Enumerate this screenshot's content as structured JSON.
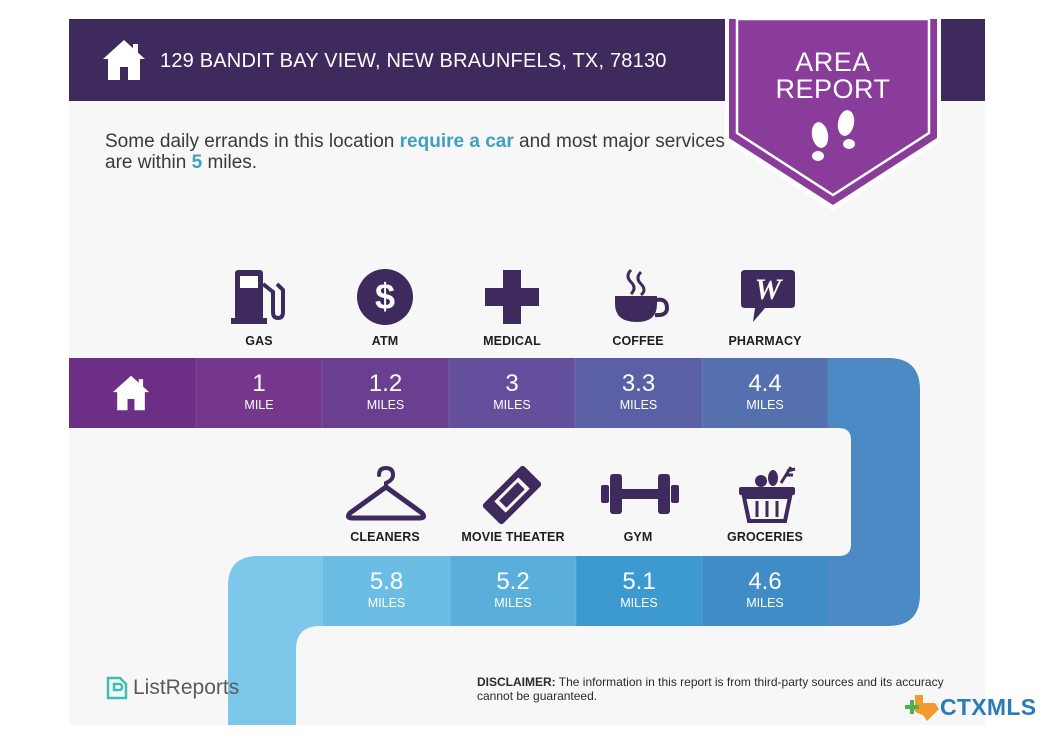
{
  "header": {
    "address": "129 BANDIT BAY VIEW, NEW BRAUNFELS, TX, 78130",
    "home_icon": "house-icon"
  },
  "badge": {
    "line1": "AREA",
    "line2": "REPORT",
    "icon": "footprints-icon",
    "color": "#8a3c9a"
  },
  "intro": {
    "part1": "Some daily errands in this location ",
    "highlight1": "require a car",
    "part2": " and most major services are within ",
    "highlight2": "5",
    "part3": " miles."
  },
  "route": {
    "row1": [
      {
        "label": "GAS",
        "value": "1",
        "unit": "MILE",
        "icon": "gas-pump-icon"
      },
      {
        "label": "ATM",
        "value": "1.2",
        "unit": "MILES",
        "icon": "dollar-icon"
      },
      {
        "label": "MEDICAL",
        "value": "3",
        "unit": "MILES",
        "icon": "medical-cross-icon"
      },
      {
        "label": "COFFEE",
        "value": "3.3",
        "unit": "MILES",
        "icon": "coffee-cup-icon"
      },
      {
        "label": "PHARMACY",
        "value": "4.4",
        "unit": "MILES",
        "icon": "walgreens-icon"
      }
    ],
    "row2": [
      {
        "label": "CLEANERS",
        "value": "5.8",
        "unit": "MILES",
        "icon": "hanger-icon"
      },
      {
        "label": "MOVIE THEATER",
        "value": "5.2",
        "unit": "MILES",
        "icon": "ticket-icon"
      },
      {
        "label": "GYM",
        "value": "5.1",
        "unit": "MILES",
        "icon": "dumbbell-icon"
      },
      {
        "label": "GROCERIES",
        "value": "4.6",
        "unit": "MILES",
        "icon": "basket-icon"
      }
    ]
  },
  "footer": {
    "brand": "ListReports",
    "disclaimer_label": "DISCLAIMER:",
    "disclaimer_text": " The information in this report is from third-party sources and its accuracy cannot be guaranteed.",
    "mls": "CTXMLS"
  },
  "colors": {
    "header": "#3f2a5e",
    "highlight": "#3fa0c2",
    "icon": "#3f2a5e"
  }
}
